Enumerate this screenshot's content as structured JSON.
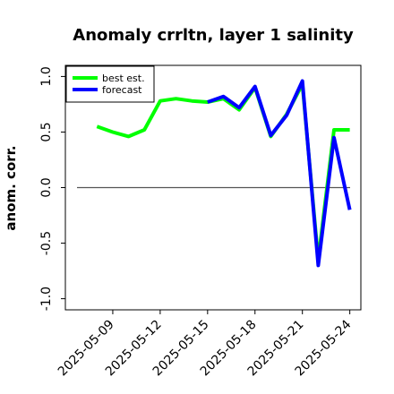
{
  "chart_data": {
    "type": "line",
    "title": "Anomaly crrltn, layer 1 salinity",
    "ylabel": "anom. corr.",
    "xlabel": "",
    "x": [
      "2025-05-08",
      "2025-05-09",
      "2025-05-10",
      "2025-05-11",
      "2025-05-12",
      "2025-05-13",
      "2025-05-14",
      "2025-05-15",
      "2025-05-16",
      "2025-05-17",
      "2025-05-18",
      "2025-05-19",
      "2025-05-20",
      "2025-05-21",
      "2025-05-22",
      "2025-05-23",
      "2025-05-24"
    ],
    "x_ticks": [
      "2025-05-09",
      "2025-05-12",
      "2025-05-15",
      "2025-05-18",
      "2025-05-21",
      "2025-05-24"
    ],
    "highlight_tick": "2025-05-15",
    "highlight_color": "#228b22",
    "xlim": [
      "2025-05-06",
      "2025-05-24.7"
    ],
    "ylim": [
      -1.1,
      1.1
    ],
    "y_ticks": [
      "1.0",
      "0.5",
      "0.0",
      "-0.5",
      "-1.0"
    ],
    "y_tick_values": [
      1.0,
      0.5,
      0.0,
      -0.5,
      -1.0
    ],
    "hline": 0,
    "legend_position": "top-left",
    "series": [
      {
        "name": "best est.",
        "color": "#00ff00",
        "values": [
          0.55,
          0.5,
          0.46,
          0.52,
          0.78,
          0.8,
          0.78,
          0.77,
          0.8,
          0.7,
          0.9,
          0.46,
          0.66,
          0.93,
          -0.65,
          0.52,
          0.52
        ]
      },
      {
        "name": "forecast",
        "color": "#0000ff",
        "values": [
          null,
          null,
          null,
          null,
          null,
          null,
          null,
          0.77,
          0.82,
          0.72,
          0.91,
          0.47,
          0.65,
          0.96,
          -0.7,
          0.45,
          -0.2
        ]
      }
    ]
  }
}
